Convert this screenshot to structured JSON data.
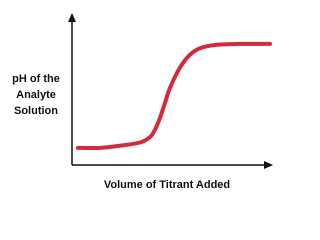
{
  "chart_data": {
    "type": "line",
    "ylabel": [
      "pH of the",
      "Analyte",
      "Solution"
    ],
    "xlabel": "Volume of Titrant Added",
    "x": [
      0.3,
      1.4,
      2.4,
      3.4,
      3.9,
      4.15,
      4.4,
      4.65,
      4.9,
      5.4,
      5.9,
      6.4,
      7.15,
      8.4,
      9.9
    ],
    "values": [
      1.6,
      1.6,
      1.8,
      2.1,
      2.6,
      3.3,
      4.4,
      5.8,
      7.2,
      9.1,
      10.3,
      10.9,
      11.2,
      11.3,
      11.3
    ],
    "color": "#d42a3c",
    "xlim": [
      0,
      10
    ],
    "ylim": [
      0,
      14
    ],
    "grid": false
  }
}
